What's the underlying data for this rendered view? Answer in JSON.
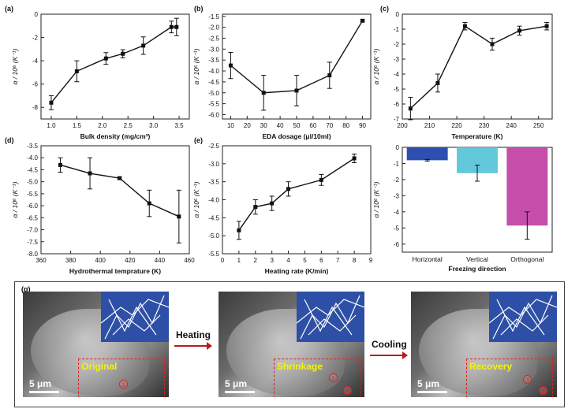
{
  "chart_data": [
    {
      "id": "a",
      "panel_label": "(a)",
      "type": "line",
      "xlabel": "Bulk density (mg/cm³)",
      "ylabel": "α / 10⁶ (K⁻¹)",
      "xlim": [
        0.8,
        3.7
      ],
      "ylim": [
        -9,
        0
      ],
      "xticks": [
        "1.0",
        "1.5",
        "2.0",
        "2.5",
        "3.0",
        "3.5"
      ],
      "yticks": [
        "-8",
        "-6",
        "-4",
        "-2",
        "0"
      ],
      "x": [
        1.0,
        1.5,
        2.07,
        2.4,
        2.8,
        3.35,
        3.45
      ],
      "y": [
        -7.6,
        -4.9,
        -3.8,
        -3.4,
        -2.7,
        -1.1,
        -1.1
      ],
      "err": [
        0.6,
        0.9,
        0.5,
        0.35,
        0.75,
        0.5,
        0.75
      ]
    },
    {
      "id": "b",
      "panel_label": "(b)",
      "type": "line",
      "xlabel": "EDA dosage (μl/10ml)",
      "ylabel": "α / 10⁶ (K⁻¹)",
      "xlim": [
        5,
        95
      ],
      "ylim": [
        -6.2,
        -1.4
      ],
      "xticks": [
        "10",
        "20",
        "30",
        "40",
        "50",
        "60",
        "70",
        "80",
        "90"
      ],
      "yticks": [
        "-6.0",
        "-5.5",
        "-5.0",
        "-4.5",
        "-4.0",
        "-3.5",
        "-3.0",
        "-2.5",
        "-2.0",
        "-1.5"
      ],
      "x": [
        10,
        30,
        50,
        70,
        90
      ],
      "y": [
        -3.75,
        -5.0,
        -4.9,
        -4.2,
        -1.7
      ],
      "err": [
        0.6,
        0.8,
        0.7,
        0.6,
        0.05
      ]
    },
    {
      "id": "c",
      "panel_label": "(c)",
      "type": "line",
      "xlabel": "Temperature (K)",
      "ylabel": "α / 10⁶ (K⁻¹)",
      "xlim": [
        200,
        255
      ],
      "ylim": [
        -7,
        0
      ],
      "xticks": [
        "200",
        "210",
        "220",
        "230",
        "240",
        "250"
      ],
      "yticks": [
        "-7",
        "-6",
        "-5",
        "-4",
        "-3",
        "-2",
        "-1",
        "0"
      ],
      "x": [
        203,
        213,
        223,
        233,
        243,
        253
      ],
      "y": [
        -6.3,
        -4.6,
        -0.8,
        -2.0,
        -1.1,
        -0.8
      ],
      "err": [
        0.75,
        0.6,
        0.25,
        0.4,
        0.3,
        0.25
      ]
    },
    {
      "id": "d",
      "panel_label": "(d)",
      "type": "line",
      "xlabel": "Hydrothermal temprature (K)",
      "ylabel": "α / 10⁶ (K⁻¹)",
      "xlim": [
        360,
        460
      ],
      "ylim": [
        -8,
        -3.5
      ],
      "xticks": [
        "360",
        "380",
        "400",
        "420",
        "440",
        "460"
      ],
      "yticks": [
        "-8.0",
        "-7.5",
        "-7.0",
        "-6.5",
        "-6.0",
        "-5.5",
        "-5.0",
        "-4.5",
        "-4.0",
        "-3.5"
      ],
      "x": [
        373,
        393,
        413,
        433,
        453
      ],
      "y": [
        -4.3,
        -4.65,
        -4.85,
        -5.9,
        -6.45
      ],
      "err": [
        0.3,
        0.65,
        0.05,
        0.55,
        1.1
      ]
    },
    {
      "id": "e",
      "panel_label": "(e)",
      "type": "line",
      "xlabel": "Heating rate (K/min)",
      "ylabel": "α / 10⁶ (K⁻¹)",
      "xlim": [
        0,
        9
      ],
      "ylim": [
        -5.5,
        -2.5
      ],
      "xticks": [
        "0",
        "1",
        "2",
        "3",
        "4",
        "5",
        "6",
        "7",
        "8",
        "9"
      ],
      "yticks": [
        "-5.5",
        "-5.0",
        "-4.5",
        "-4.0",
        "-3.5",
        "-3.0",
        "-2.5"
      ],
      "x": [
        1,
        2,
        3,
        4,
        6,
        8
      ],
      "y": [
        -4.85,
        -4.2,
        -4.1,
        -3.7,
        -3.45,
        -2.85
      ],
      "err": [
        0.25,
        0.2,
        0.2,
        0.2,
        0.15,
        0.12
      ]
    },
    {
      "id": "f",
      "panel_label": "",
      "type": "bar",
      "xlabel": "Freezing direction",
      "ylabel": "α / 10⁶ (K⁻¹)",
      "ylim": [
        -6.5,
        0
      ],
      "yticks": [
        "-6",
        "-5",
        "-4",
        "-3",
        "-2",
        "-1",
        "0"
      ],
      "categories": [
        "Horizontal",
        "Vertical",
        "Orthogonal"
      ],
      "values": [
        -0.8,
        -1.6,
        -4.85
      ],
      "err": [
        0.05,
        0.5,
        0.85
      ],
      "colors": [
        "#2e4fb0",
        "#64c8dc",
        "#c54fab"
      ]
    }
  ],
  "panel_g": {
    "label": "(g)",
    "arrow_heating": "Heating",
    "arrow_cooling": "Cooling",
    "images": [
      {
        "state": "Original",
        "scale": "5 μm",
        "markers": [
          "②"
        ]
      },
      {
        "state": "Shrinkage",
        "scale": "5 μm",
        "markers": [
          "②",
          "①"
        ]
      },
      {
        "state": "Recovery",
        "scale": "5 μm",
        "markers": [
          "③",
          "②"
        ]
      }
    ]
  }
}
